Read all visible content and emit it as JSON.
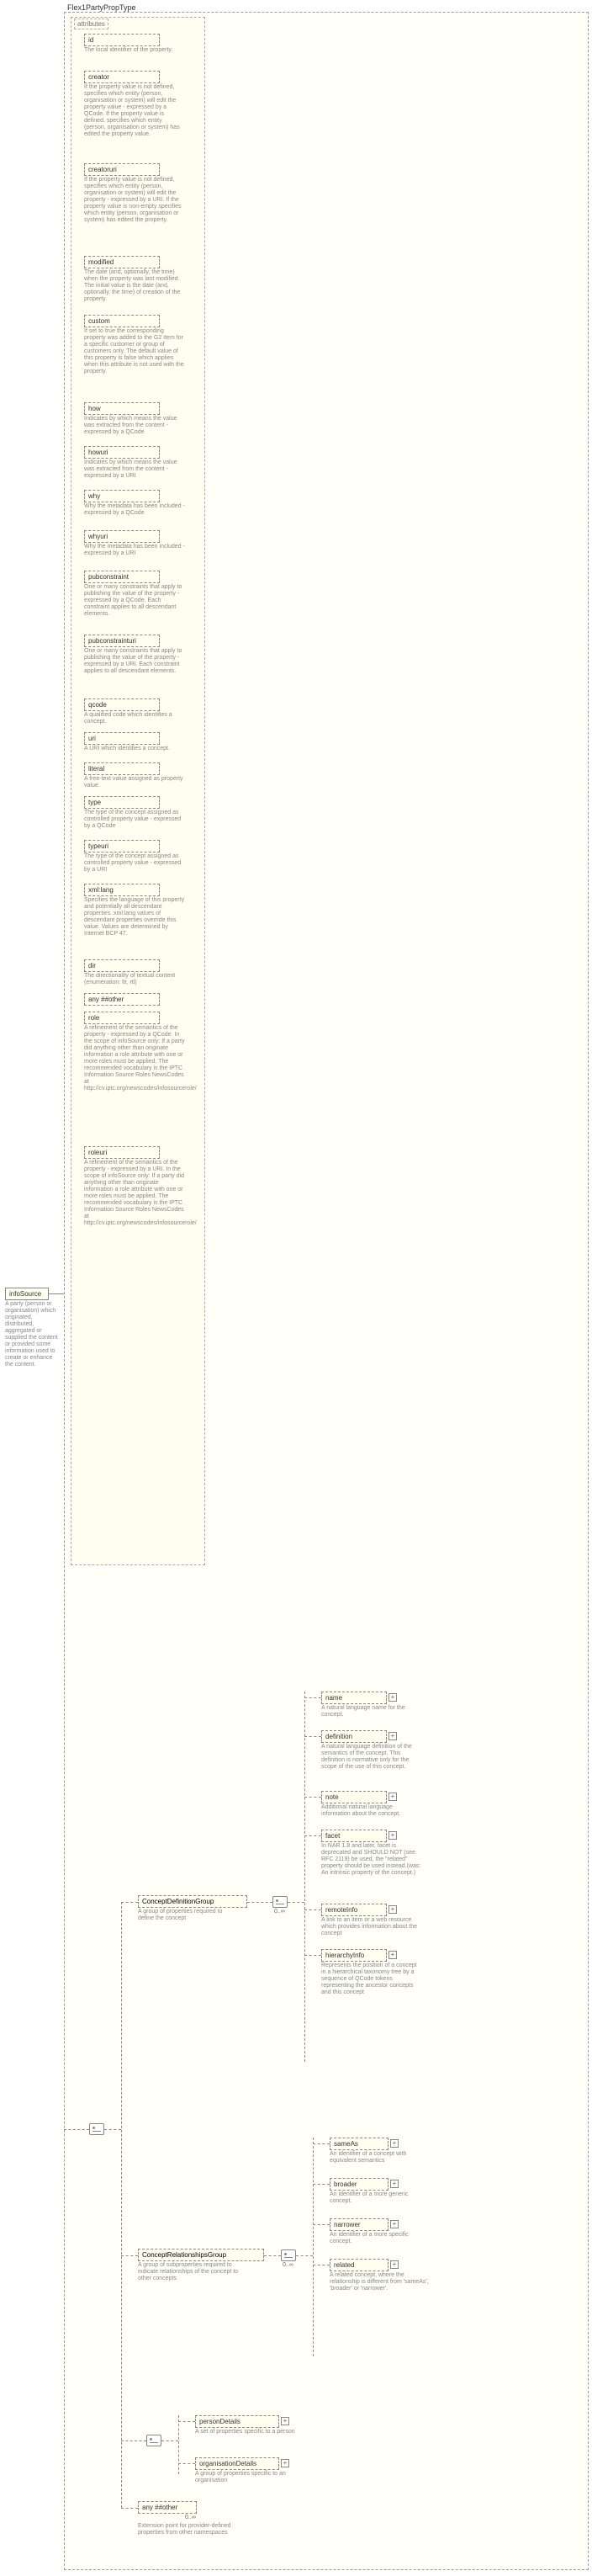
{
  "typeName": "Flex1PartyPropType",
  "root": {
    "name": "infoSource",
    "desc": "A party (person or organisation) which originated, distributed, aggregated or supplied the content or provided some information used to create or enhance the content."
  },
  "attrHeader": "attributes",
  "attrs": [
    {
      "name": "id",
      "desc": "The local identifier of the property."
    },
    {
      "name": "creator",
      "desc": "If the property value is not defined, specifies which entity (person, organisation or system) will edit the property value - expressed by a QCode. If the property value is defined, specifies which entity (person, organisation or system) has edited the property value."
    },
    {
      "name": "creatoruri",
      "desc": "If the property value is not defined, specifies which entity (person, organisation or system) will edit the property - expressed by a URI. If the property value is non-empty specifies which entity (person, organisation or system) has edited the property."
    },
    {
      "name": "modified",
      "desc": "The date (and, optionally, the time) when the property was last modified. The initial value is the date (and, optionally, the time) of creation of the property."
    },
    {
      "name": "custom",
      "desc": "If set to true the corresponding property was added to the G2 Item for a specific customer or group of customers only. The default value of this property is false which applies when this attribute is not used with the property."
    },
    {
      "name": "how",
      "desc": "Indicates by which means the value was extracted from the content - expressed by a QCode"
    },
    {
      "name": "howuri",
      "desc": "Indicates by which means the value was extracted from the content - expressed by a URI"
    },
    {
      "name": "why",
      "desc": "Why the metadata has been included - expressed by a QCode"
    },
    {
      "name": "whyuri",
      "desc": "Why the metadata has been included - expressed by a URI"
    },
    {
      "name": "pubconstraint",
      "desc": "One or many constraints that apply to publishing the value of the property - expressed by a QCode. Each constraint applies to all descendant elements."
    },
    {
      "name": "pubconstrainturi",
      "desc": "One or many constraints that apply to publishing the value of the property - expressed by a URI. Each constraint applies to all descendant elements."
    },
    {
      "name": "qcode",
      "desc": "A qualified code which identifies a concept."
    },
    {
      "name": "uri",
      "desc": "A URI which identifies a concept."
    },
    {
      "name": "literal",
      "desc": "A free-text value assigned as property value."
    },
    {
      "name": "type",
      "desc": "The type of the concept assigned as controlled property value - expressed by a QCode"
    },
    {
      "name": "typeuri",
      "desc": "The type of the concept assigned as controlled property value - expressed by a URI"
    },
    {
      "name": "xml:lang",
      "desc": "Specifies the language of this property and potentially all descendant properties. xml:lang values of descendant properties override this value. Values are determined by Internet BCP 47."
    },
    {
      "name": "dir",
      "desc": "The directionality of textual content (enumeration: ltr, rtl)"
    },
    {
      "name": "any ##other",
      "desc": ""
    },
    {
      "name": "role",
      "desc": "A refinement of the semantics of the property - expressed by a QCode. In the scope of infoSource only: If a party did anything other than originate information a role attribute with one or more roles must be applied. The recommended vocabulary is the IPTC Information Source Roles NewsCodes at http://cv.iptc.org/newscodes/infosourcerole/"
    },
    {
      "name": "roleuri",
      "desc": "A refinement of the semantics of the property - expressed by a URI. In the scope of infoSource only: If a party did anything other than originate information a role attribute with one or more roles must be applied. The recommended vocabulary is the IPTC Information Source Roles NewsCodes at http://cv.iptc.org/newscodes/infosourcerole/"
    }
  ],
  "groups": {
    "cdg": {
      "name": "ConceptDefinitionGroup",
      "desc": "A group of properties required to define the concept",
      "card": "0..∞"
    },
    "crg": {
      "name": "ConceptRelationshipsGroup",
      "desc": "A group of subproperties required to indicate relationships of the concept to other concepts",
      "card": "0..∞"
    }
  },
  "cdgChildren": [
    {
      "name": "name",
      "desc": "A natural language name for the concept."
    },
    {
      "name": "definition",
      "desc": "A natural language definition of the semantics of the concept. This definition is normative only for the scope of the use of this concept."
    },
    {
      "name": "note",
      "desc": "Additional natural language information about the concept."
    },
    {
      "name": "facet",
      "desc": "In NAR 1.8 and later, facet is deprecated and SHOULD NOT (see RFC 2119) be used, the \"related\" property should be used instead.(was: An intrinsic property of the concept.)"
    },
    {
      "name": "remoteInfo",
      "desc": "A link to an item or a web resource which provides information about the concept"
    },
    {
      "name": "hierarchyInfo",
      "desc": "Represents the position of a concept in a hierarchical taxonomy tree by a sequence of QCode tokens representing the ancestor concepts and this concept"
    }
  ],
  "crgChildren": [
    {
      "name": "sameAs",
      "desc": "An identifier of a concept with equivalent semantics"
    },
    {
      "name": "broader",
      "desc": "An identifier of a more generic concept."
    },
    {
      "name": "narrower",
      "desc": "An identifier of a more specific concept."
    },
    {
      "name": "related",
      "desc": "A related concept, where the relationship is different from 'sameAs', 'broader' or 'narrower'."
    }
  ],
  "choiceChildren": [
    {
      "name": "personDetails",
      "desc": "A set of properties specific to a person"
    },
    {
      "name": "organisationDetails",
      "desc": "A group of properties specific to an organisation"
    }
  ],
  "bottom": {
    "name": "any ##other",
    "desc": "Extension point for provider-defined properties from other namespaces",
    "card": "0..∞"
  },
  "colors": {
    "bgYellow": "#fffff0",
    "border": "#888888",
    "descText": "#888888"
  }
}
